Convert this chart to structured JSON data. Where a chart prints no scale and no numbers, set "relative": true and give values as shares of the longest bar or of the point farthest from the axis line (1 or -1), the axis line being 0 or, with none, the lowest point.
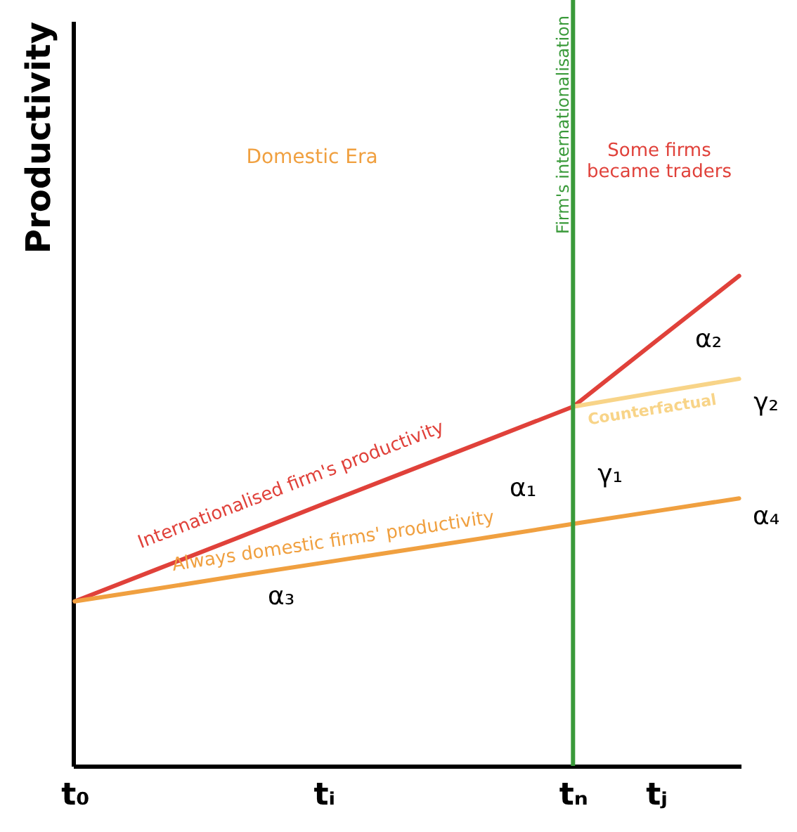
{
  "chart_data": {
    "type": "line",
    "relative": true,
    "ylabel": "Productivity",
    "categories": [
      "t₀",
      null,
      null,
      "tᵢ",
      null,
      null,
      "tₙ",
      "tⱼ",
      null
    ],
    "series": [
      {
        "name": "Internationalised firm's productivity",
        "color": "#e0413a",
        "values": [
          0.336,
          0.402,
          0.468,
          0.535,
          0.601,
          0.667,
          0.733,
          0.867,
          1
        ]
      },
      {
        "name": "Always domestic firms' productivity",
        "color": "#f0a040",
        "values": [
          0.336,
          0.362,
          0.389,
          0.415,
          0.441,
          0.467,
          0.494,
          0.52,
          0.546
        ]
      },
      {
        "name": "Counterfactual",
        "color": "#f8d488",
        "values": [
          null,
          null,
          null,
          null,
          null,
          null,
          0.733,
          0.762,
          0.79
        ]
      }
    ],
    "ref_lines": [
      {
        "axis": "x",
        "value": "tₙ",
        "label": "Firm's internationalisation",
        "color": "#3a9a3a"
      }
    ],
    "annotations": [
      "Domestic Era",
      "Some firms became traders",
      "α₁",
      "α₂",
      "α₃",
      "α₄",
      "γ₁",
      "γ₂"
    ],
    "grid": false,
    "marker": "none"
  }
}
